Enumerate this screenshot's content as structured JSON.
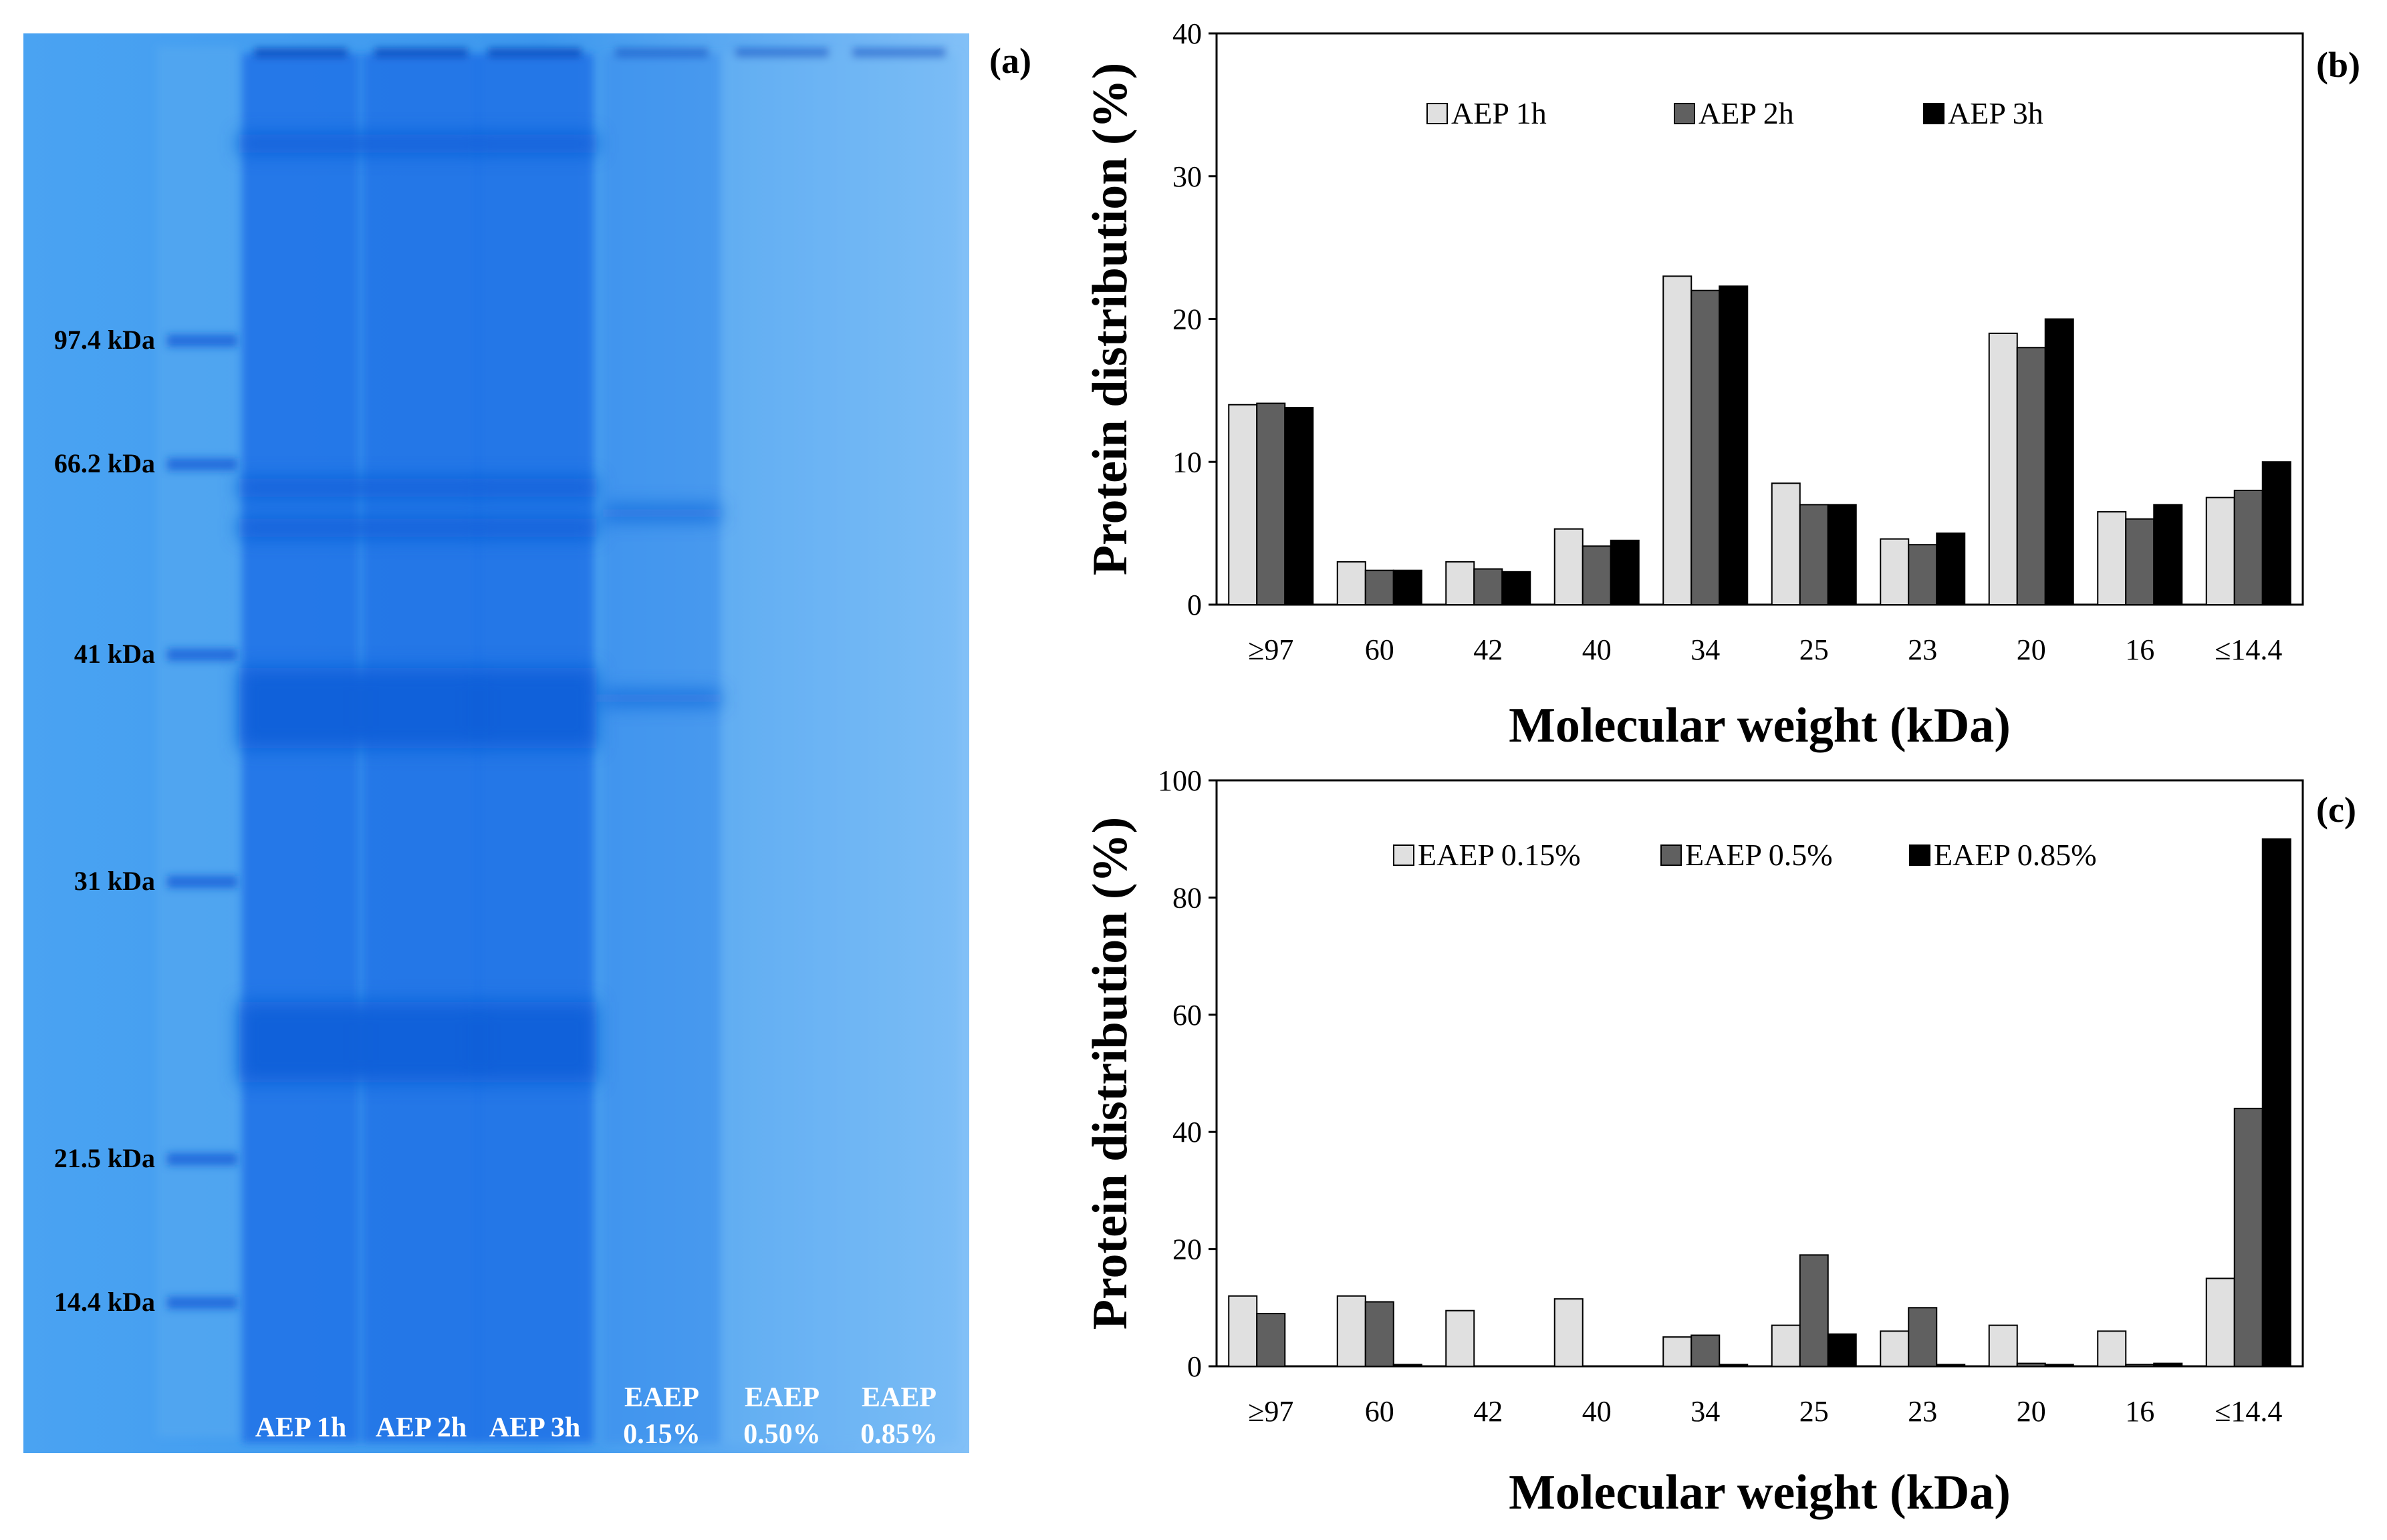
{
  "gel": {
    "panel_label": "(a)",
    "markers": [
      "97.4 kDa",
      "66.2 kDa",
      "41 kDa",
      "31 kDa",
      "21.5 kDa",
      "14.4 kDa"
    ],
    "lanes": [
      {
        "line1": "AEP 1h",
        "line2": ""
      },
      {
        "line1": "AEP 2h",
        "line2": ""
      },
      {
        "line1": "AEP 3h",
        "line2": ""
      },
      {
        "line1": "EAEP",
        "line2": "0.15%"
      },
      {
        "line1": "EAEP",
        "line2": "0.50%"
      },
      {
        "line1": "EAEP",
        "line2": "0.85%"
      }
    ],
    "colors": {
      "gel": "#3f9bef",
      "band": "#1a6ee6"
    }
  },
  "chart_data": [
    {
      "panel_label": "(b)",
      "type": "bar",
      "title": "",
      "xlabel": "Molecular weight (kDa)",
      "ylabel": "Protein distribution (%)",
      "ylim": [
        0,
        40
      ],
      "yticks": [
        "0",
        "10",
        "20",
        "30",
        "40"
      ],
      "legend_position": "top",
      "categories": [
        "≥97",
        "60",
        "42",
        "40",
        "34",
        "25",
        "23",
        "20",
        "16",
        "≤14.4"
      ],
      "series": [
        {
          "name": "AEP 1h",
          "color": "#e0e0e0",
          "values": [
            14,
            3,
            3,
            5.3,
            23,
            8.5,
            4.6,
            19,
            6.5,
            7.5
          ]
        },
        {
          "name": "AEP 2h",
          "color": "#606060",
          "values": [
            14.1,
            2.4,
            2.5,
            4.1,
            22,
            7,
            4.2,
            18,
            6,
            8
          ]
        },
        {
          "name": "AEP 3h",
          "color": "#000000",
          "values": [
            13.8,
            2.4,
            2.3,
            4.5,
            22.3,
            7,
            5,
            20,
            7,
            10
          ]
        }
      ]
    },
    {
      "panel_label": "(c)",
      "type": "bar",
      "title": "",
      "xlabel": "Molecular weight (kDa)",
      "ylabel": "Protein distribution (%)",
      "ylim": [
        0,
        100
      ],
      "yticks": [
        "0",
        "20",
        "40",
        "60",
        "80",
        "100"
      ],
      "legend_position": "top",
      "categories": [
        "≥97",
        "60",
        "42",
        "40",
        "34",
        "25",
        "23",
        "20",
        "16",
        "≤14.4"
      ],
      "series": [
        {
          "name": "EAEP 0.15%",
          "color": "#e0e0e0",
          "values": [
            12,
            12,
            9.5,
            11.5,
            5,
            7,
            6,
            7,
            6,
            15
          ]
        },
        {
          "name": "EAEP 0.5%",
          "color": "#606060",
          "values": [
            9,
            11,
            0,
            0,
            5.3,
            19,
            10,
            0.5,
            0.3,
            44
          ]
        },
        {
          "name": "EAEP 0.85%",
          "color": "#000000",
          "values": [
            0,
            0.3,
            0,
            0,
            0.3,
            5.5,
            0.3,
            0.3,
            0.5,
            90
          ]
        }
      ]
    }
  ]
}
